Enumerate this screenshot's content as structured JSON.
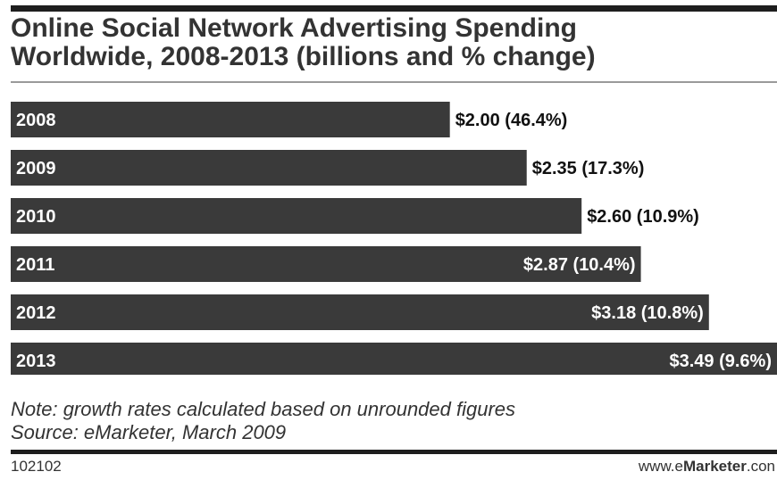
{
  "header": {
    "title_line1": "Online Social Network Advertising Spending",
    "title_line2": "Worldwide, 2008-2013 (billions and % change)"
  },
  "chart_data": {
    "type": "bar",
    "orientation": "horizontal",
    "title": "Online Social Network Advertising Spending Worldwide, 2008-2013 (billions and % change)",
    "categories": [
      "2008",
      "2009",
      "2010",
      "2011",
      "2012",
      "2013"
    ],
    "values": [
      2.0,
      2.35,
      2.6,
      2.87,
      3.18,
      3.49
    ],
    "pct_change": [
      46.4,
      17.3,
      10.9,
      10.4,
      10.8,
      9.6
    ],
    "labels": [
      "$2.00 (46.4%)",
      "$2.35 (17.3%)",
      "$2.60 (10.9%)",
      "$2.87 (10.4%)",
      "$3.18 (10.8%)",
      "$3.49 (9.6%)"
    ],
    "xlim": [
      0,
      3.49
    ],
    "bar_color": "#3a3a3a",
    "label_color_outside": "#111111",
    "label_color_inside": "#ffffff"
  },
  "notes": {
    "note": "Note: growth rates calculated based on unrounded figures",
    "source": "Source: eMarketer, March 2009"
  },
  "footer": {
    "id": "102102",
    "site_prefix": "www.e",
    "site_brand": "Marketer",
    "site_suffix": ".con"
  }
}
